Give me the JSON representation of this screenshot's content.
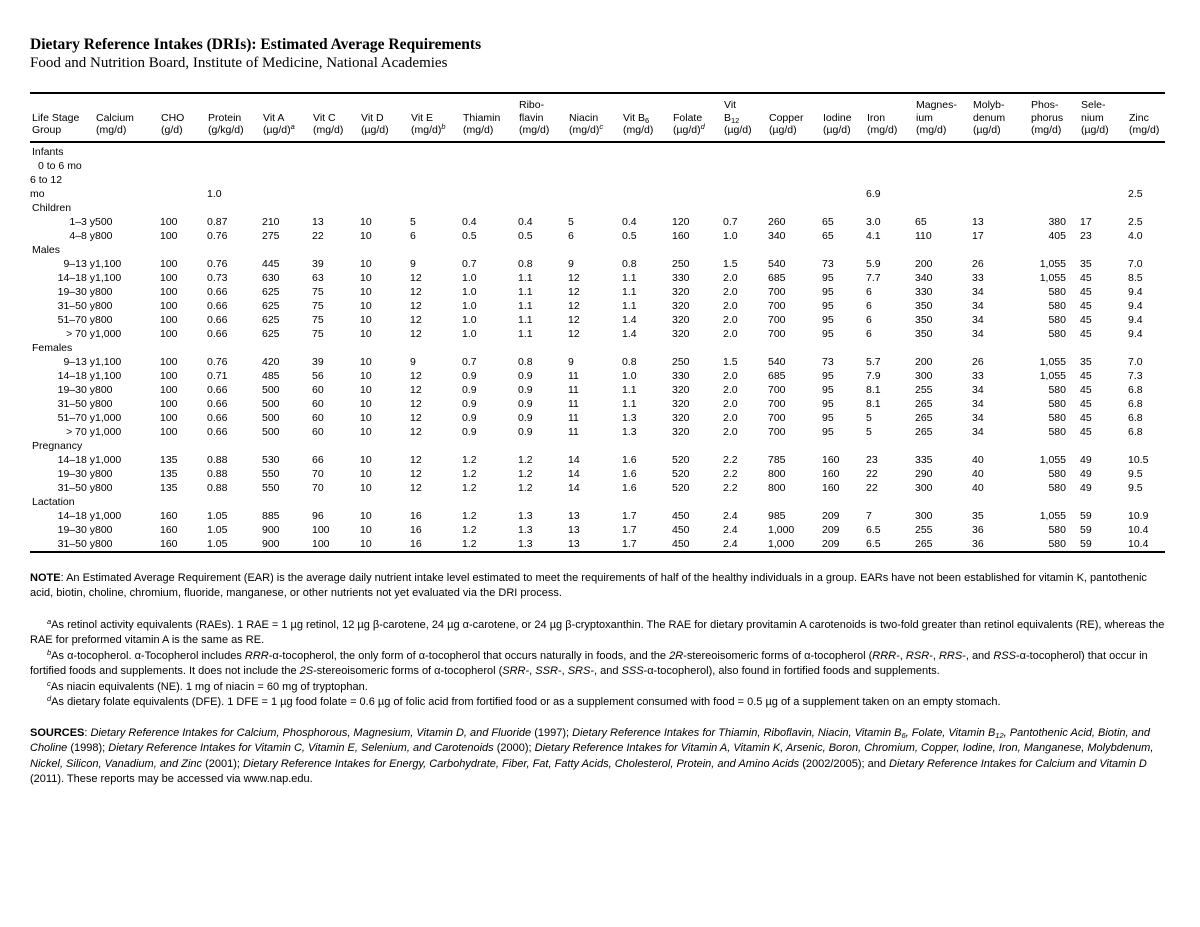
{
  "header": {
    "title": "Dietary Reference Intakes (DRIs): Estimated Average Requirements",
    "subtitle": "Food and Nutrition Board, Institute of Medicine, National Academies"
  },
  "table": {
    "columns": [
      "Life Stage\nGroup",
      "Calcium\n(mg/d)",
      "CHO\n(g/d)",
      "Protein\n(g/kg/d)",
      "Vit A\n(µg/d)^{a}",
      "Vit C\n(mg/d)",
      "Vit D\n(µg/d)",
      "Vit E\n(mg/d)^{b}",
      "Thiamin\n(mg/d)",
      "Ribo-\nflavin\n(mg/d)",
      "Niacin\n(mg/d)^{c}",
      "Vit B_{6}\n(mg/d)",
      "Folate\n(µg/d)^{d}",
      "Vit\nB_{12}\n(µg/d)",
      "Copper\n(µg/d)",
      "Iodine\n(µg/d)",
      "Iron\n(mg/d)",
      "Magnes-\nium\n(mg/d)",
      "Molyb-\ndenum\n(µg/d)",
      "Phos-\nphorus\n(mg/d)",
      "Sele-\nnium\n(µg/d)",
      "Zinc\n(mg/d)"
    ],
    "sections": [
      {
        "label": "Infants",
        "rows": [
          {
            "label": "0 to 6 mo",
            "label_style": "left-indent",
            "values": [
              "",
              "",
              "",
              "",
              "",
              "",
              "",
              "",
              "",
              "",
              "",
              "",
              "",
              "",
              "",
              "",
              "",
              "",
              "",
              "",
              ""
            ]
          },
          {
            "label": "6 to 12\nmo",
            "label_style": "left-wrap",
            "values": [
              "",
              "",
              "1.0",
              "",
              "",
              "",
              "",
              "",
              "",
              "",
              "",
              "",
              "",
              "",
              "",
              "6.9",
              "",
              "",
              "",
              "",
              "2.5"
            ]
          }
        ]
      },
      {
        "label": "Children",
        "rows": [
          {
            "label": "1–3 y",
            "values": [
              "500",
              "100",
              "0.87",
              "210",
              "13",
              "10",
              "5",
              "0.4",
              "0.4",
              "5",
              "0.4",
              "120",
              "0.7",
              "260",
              "65",
              "3.0",
              "65",
              "13",
              "380",
              "17",
              "2.5"
            ]
          },
          {
            "label": "4–8 y",
            "values": [
              "800",
              "100",
              "0.76",
              "275",
              "22",
              "10",
              "6",
              "0.5",
              "0.5",
              "6",
              "0.5",
              "160",
              "1.0",
              "340",
              "65",
              "4.1",
              "110",
              "17",
              "405",
              "23",
              "4.0"
            ]
          }
        ]
      },
      {
        "label": "Males",
        "rows": [
          {
            "label": "9–13 y",
            "values": [
              "1,100",
              "100",
              "0.76",
              "445",
              "39",
              "10",
              "9",
              "0.7",
              "0.8",
              "9",
              "0.8",
              "250",
              "1.5",
              "540",
              "73",
              "5.9",
              "200",
              "26",
              "1,055",
              "35",
              "7.0"
            ]
          },
          {
            "label": "14–18 y",
            "values": [
              "1,100",
              "100",
              "0.73",
              "630",
              "63",
              "10",
              "12",
              "1.0",
              "1.1",
              "12",
              "1.1",
              "330",
              "2.0",
              "685",
              "95",
              "7.7",
              "340",
              "33",
              "1,055",
              "45",
              "8.5"
            ]
          },
          {
            "label": "19–30 y",
            "values": [
              "800",
              "100",
              "0.66",
              "625",
              "75",
              "10",
              "12",
              "1.0",
              "1.1",
              "12",
              "1.1",
              "320",
              "2.0",
              "700",
              "95",
              "6",
              "330",
              "34",
              "580",
              "45",
              "9.4"
            ]
          },
          {
            "label": "31–50 y",
            "values": [
              "800",
              "100",
              "0.66",
              "625",
              "75",
              "10",
              "12",
              "1.0",
              "1.1",
              "12",
              "1.1",
              "320",
              "2.0",
              "700",
              "95",
              "6",
              "350",
              "34",
              "580",
              "45",
              "9.4"
            ]
          },
          {
            "label": "51–70 y",
            "values": [
              "800",
              "100",
              "0.66",
              "625",
              "75",
              "10",
              "12",
              "1.0",
              "1.1",
              "12",
              "1.4",
              "320",
              "2.0",
              "700",
              "95",
              "6",
              "350",
              "34",
              "580",
              "45",
              "9.4"
            ]
          },
          {
            "label": "> 70 y",
            "values": [
              "1,000",
              "100",
              "0.66",
              "625",
              "75",
              "10",
              "12",
              "1.0",
              "1.1",
              "12",
              "1.4",
              "320",
              "2.0",
              "700",
              "95",
              "6",
              "350",
              "34",
              "580",
              "45",
              "9.4"
            ]
          }
        ]
      },
      {
        "label": "Females",
        "rows": [
          {
            "label": "9–13 y",
            "values": [
              "1,100",
              "100",
              "0.76",
              "420",
              "39",
              "10",
              "9",
              "0.7",
              "0.8",
              "9",
              "0.8",
              "250",
              "1.5",
              "540",
              "73",
              "5.7",
              "200",
              "26",
              "1,055",
              "35",
              "7.0"
            ]
          },
          {
            "label": "14–18 y",
            "values": [
              "1,100",
              "100",
              "0.71",
              "485",
              "56",
              "10",
              "12",
              "0.9",
              "0.9",
              "11",
              "1.0",
              "330",
              "2.0",
              "685",
              "95",
              "7.9",
              "300",
              "33",
              "1,055",
              "45",
              "7.3"
            ]
          },
          {
            "label": "19–30 y",
            "values": [
              "800",
              "100",
              "0.66",
              "500",
              "60",
              "10",
              "12",
              "0.9",
              "0.9",
              "11",
              "1.1",
              "320",
              "2.0",
              "700",
              "95",
              "8.1",
              "255",
              "34",
              "580",
              "45",
              "6.8"
            ]
          },
          {
            "label": "31–50 y",
            "values": [
              "800",
              "100",
              "0.66",
              "500",
              "60",
              "10",
              "12",
              "0.9",
              "0.9",
              "11",
              "1.1",
              "320",
              "2.0",
              "700",
              "95",
              "8.1",
              "265",
              "34",
              "580",
              "45",
              "6.8"
            ]
          },
          {
            "label": "51–70 y",
            "values": [
              "1,000",
              "100",
              "0.66",
              "500",
              "60",
              "10",
              "12",
              "0.9",
              "0.9",
              "11",
              "1.3",
              "320",
              "2.0",
              "700",
              "95",
              "5",
              "265",
              "34",
              "580",
              "45",
              "6.8"
            ]
          },
          {
            "label": "> 70 y",
            "values": [
              "1,000",
              "100",
              "0.66",
              "500",
              "60",
              "10",
              "12",
              "0.9",
              "0.9",
              "11",
              "1.3",
              "320",
              "2.0",
              "700",
              "95",
              "5",
              "265",
              "34",
              "580",
              "45",
              "6.8"
            ]
          }
        ]
      },
      {
        "label": "Pregnancy",
        "rows": [
          {
            "label": "14–18 y",
            "values": [
              "1,000",
              "135",
              "0.88",
              "530",
              "66",
              "10",
              "12",
              "1.2",
              "1.2",
              "14",
              "1.6",
              "520",
              "2.2",
              "785",
              "160",
              "23",
              "335",
              "40",
              "1,055",
              "49",
              "10.5"
            ]
          },
          {
            "label": "19–30 y",
            "values": [
              "800",
              "135",
              "0.88",
              "550",
              "70",
              "10",
              "12",
              "1.2",
              "1.2",
              "14",
              "1.6",
              "520",
              "2.2",
              "800",
              "160",
              "22",
              "290",
              "40",
              "580",
              "49",
              "9.5"
            ]
          },
          {
            "label": "31–50 y",
            "values": [
              "800",
              "135",
              "0.88",
              "550",
              "70",
              "10",
              "12",
              "1.2",
              "1.2",
              "14",
              "1.6",
              "520",
              "2.2",
              "800",
              "160",
              "22",
              "300",
              "40",
              "580",
              "49",
              "9.5"
            ]
          }
        ]
      },
      {
        "label": "Lactation",
        "rows": [
          {
            "label": "14–18 y",
            "values": [
              "1,000",
              "160",
              "1.05",
              "885",
              "96",
              "10",
              "16",
              "1.2",
              "1.3",
              "13",
              "1.7",
              "450",
              "2.4",
              "985",
              "209",
              "7",
              "300",
              "35",
              "1,055",
              "59",
              "10.9"
            ]
          },
          {
            "label": "19–30 y",
            "values": [
              "800",
              "160",
              "1.05",
              "900",
              "100",
              "10",
              "16",
              "1.2",
              "1.3",
              "13",
              "1.7",
              "450",
              "2.4",
              "1,000",
              "209",
              "6.5",
              "255",
              "36",
              "580",
              "59",
              "10.4"
            ]
          },
          {
            "label": "31–50 y",
            "values": [
              "800",
              "160",
              "1.05",
              "900",
              "100",
              "10",
              "16",
              "1.2",
              "1.3",
              "13",
              "1.7",
              "450",
              "2.4",
              "1,000",
              "209",
              "6.5",
              "265",
              "36",
              "580",
              "59",
              "10.4"
            ]
          }
        ]
      }
    ]
  },
  "note": {
    "label": "NOTE",
    "text": ": An Estimated Average Requirement (EAR) is the average daily nutrient intake level estimated to meet the requirements of half of the healthy individuals in a group. EARs have not been established for vitamin K, pantothenic acid, biotin, choline, chromium, fluoride, manganese, or other nutrients not yet evaluated via the DRI process."
  },
  "footnotes": [
    "^{a}As retinol activity equivalents (RAEs). 1 RAE = 1 µg retinol, 12 µg β-carotene, 24 µg α-carotene, or 24 µg β-cryptoxanthin. The RAE for dietary provitamin A carotenoids is two-fold greater than retinol equivalents (RE), whereas the RAE for preformed vitamin A is the same as RE.",
    "^{b}As α-tocopherol. α-Tocopherol includes *RRR*-α-tocopherol, the only form of α-tocopherol that occurs naturally in foods, and the *2R*-stereoisomeric forms of α-tocopherol (*RRR-*, *RSR-*, *RRS-*, and *RSS*-α-tocopherol) that occur in fortified foods and supplements. It does not include the *2S*-stereoisomeric forms of α-tocopherol (*SRR-*, *SSR-*, *SRS-*, and *SSS*-α-tocopherol), also found in fortified foods and supplements.",
    "^{c}As niacin equivalents (NE). 1 mg of niacin = 60 mg of tryptophan.",
    "^{d}As dietary folate equivalents (DFE). 1 DFE = 1 µg food folate = 0.6 µg of folic acid from fortified food or as a supplement consumed with food = 0.5 µg of a supplement taken on an empty stomach."
  ],
  "sources": {
    "label": "SOURCES",
    "text": ": *Dietary Reference Intakes for Calcium, Phosphorous, Magnesium, Vitamin D, and Fluoride* (1997); *Dietary Reference Intakes for Thiamin, Riboflavin, Niacin, Vitamin B_{6}, Folate, Vitamin B_{12}, Pantothenic Acid, Biotin, and Choline* (1998); *Dietary Reference Intakes for Vitamin C, Vitamin E, Selenium, and Carotenoids* (2000); *Dietary Reference Intakes for Vitamin A, Vitamin K, Arsenic, Boron, Chromium, Copper, Iodine, Iron, Manganese, Molybdenum, Nickel, Silicon, Vanadium, and Zinc* (2001); *Dietary Reference Intakes for Energy, Carbohydrate, Fiber, Fat, Fatty Acids, Cholesterol, Protein, and Amino Acids* (2002/2005); and *Dietary Reference Intakes for Calcium and Vitamin D* (2011). These reports may be accessed via www.nap.edu."
  }
}
